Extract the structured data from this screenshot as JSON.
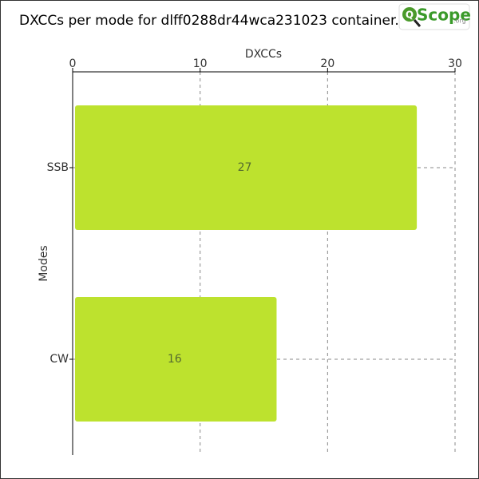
{
  "chart_data": {
    "type": "bar",
    "orientation": "horizontal",
    "title": "DXCCs per mode for dlff0288dr44wca231023 container.",
    "x_label": "DXCCs",
    "y_label": "Modes",
    "categories": [
      "SSB",
      "CW"
    ],
    "values": [
      27,
      16
    ],
    "color": "#bde22e",
    "xlim": [
      0,
      30
    ],
    "xticks": [
      0,
      10,
      20,
      30
    ],
    "grid": true
  },
  "logo": {
    "mark": "Q",
    "text": "Scope",
    "suffix": ".org"
  }
}
